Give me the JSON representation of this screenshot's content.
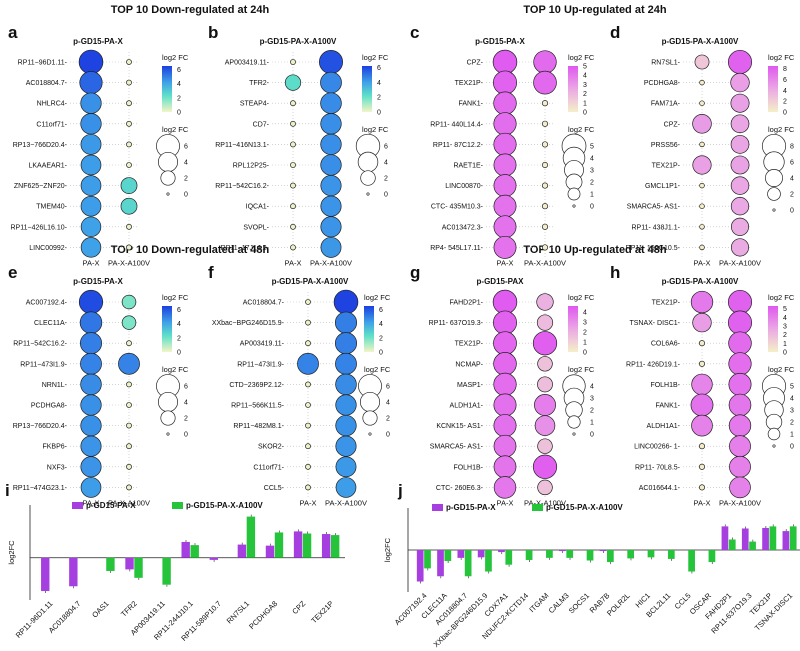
{
  "section_titles": {
    "down24": "TOP 10 Down-regulated at 24h",
    "up24": "TOP 10 Up-regulated at 24h",
    "down48": "TOP 10 Down-regulated at 48h",
    "up48": "TOP 10 Up-regulated at 48h"
  },
  "legend_labels": {
    "color": "log2 FC",
    "size": "log2 FC"
  },
  "bar_legend": {
    "series1": "p-GD15-PA-X",
    "series2": "p-GD15-PA-X-A100V",
    "ylabel": "log2FC"
  },
  "colors": {
    "purple": "#a63fe0",
    "green": "#26c43a",
    "blue_high": "#1d3fe0",
    "teal_low": "#2fe0c0",
    "pink_high": "#e058f0",
    "cream_low": "#f4f0c8"
  },
  "chart_data": [
    {
      "id": "a",
      "type": "dot",
      "title": "p-GD15-PA-X",
      "palette": "blue",
      "xlabels": [
        "PA-X",
        "PA-X-A100V"
      ],
      "genes": [
        "RP11−96D1.11",
        "AC018804.7",
        "NHLRC4",
        "C11orf71",
        "RP13−766D20.4",
        "LKAAEAR1",
        "ZNF625−ZNF20",
        "TMEM40",
        "RP11−426L16.10",
        "LINC00992"
      ],
      "values": [
        [
          6.4,
          0.1
        ],
        [
          5.6,
          0.1
        ],
        [
          4.6,
          0.1
        ],
        [
          4.6,
          0.1
        ],
        [
          4.4,
          0.1
        ],
        [
          4.3,
          0.1
        ],
        [
          4.3,
          2.6
        ],
        [
          4.3,
          2.6
        ],
        [
          4.2,
          0.1
        ],
        [
          4.2,
          0.1
        ]
      ],
      "color_ticks": [
        0,
        2,
        4,
        6
      ],
      "color_range": [
        0,
        6.5
      ],
      "size_ticks": [
        6,
        4,
        2,
        0
      ],
      "size_range": [
        0,
        6.5
      ]
    },
    {
      "id": "b",
      "type": "dot",
      "title": "p-GD15-PA-X-A100V",
      "palette": "blue",
      "xlabels": [
        "PA-X",
        "PA-X-A100V"
      ],
      "genes": [
        "AP003419.11",
        "TFR2",
        "STEAP4",
        "CD7",
        "RP11−416N13.1",
        "RPL12P25",
        "RP11−542C16.2",
        "IQCA1",
        "SVOPL",
        "RP11−17J14.2"
      ],
      "values": [
        [
          0.1,
          5.8
        ],
        [
          2.3,
          4.6
        ],
        [
          0.1,
          4.5
        ],
        [
          0.1,
          4.4
        ],
        [
          0.1,
          4.4
        ],
        [
          0.1,
          4.4
        ],
        [
          0.1,
          4.3
        ],
        [
          0.1,
          4.3
        ],
        [
          0.1,
          4.3
        ],
        [
          0.1,
          4.2
        ]
      ],
      "color_ticks": [
        0,
        2,
        4,
        6
      ],
      "color_range": [
        0,
        6.2
      ],
      "size_ticks": [
        6,
        4,
        2,
        0
      ],
      "size_range": [
        0,
        6.2
      ]
    },
    {
      "id": "c",
      "type": "dot",
      "title": "p-GD15-PA-X",
      "palette": "pink",
      "xlabels": [
        "PA-X",
        "PA-X-A100V"
      ],
      "genes": [
        "CPZ",
        "TEX21P",
        "FANK1",
        "RP11- 440L14.4",
        "RP11- 87C12.2",
        "RAET1E",
        "LINC00870",
        "CTC- 435M10.3",
        "AC013472.3",
        "RP4- 545L17.11"
      ],
      "values": [
        [
          4.9,
          4.4
        ],
        [
          4.7,
          4.5
        ],
        [
          4.4,
          0.1
        ],
        [
          4.3,
          0.1
        ],
        [
          4.3,
          0.1
        ],
        [
          4.2,
          0.1
        ],
        [
          4.2,
          0.1
        ],
        [
          4.2,
          0.1
        ],
        [
          4.2,
          0.1
        ],
        [
          4.2,
          0.1
        ]
      ],
      "color_ticks": [
        0,
        1,
        2,
        3,
        4,
        5
      ],
      "color_range": [
        0,
        5
      ],
      "size_ticks": [
        5,
        4,
        3,
        2,
        1,
        0
      ],
      "size_range": [
        0,
        5
      ]
    },
    {
      "id": "d",
      "type": "dot",
      "title": "p-GD15-PA-X-A100V",
      "palette": "pink",
      "xlabels": [
        "PA-X",
        "PA-X-A100V"
      ],
      "genes": [
        "RN7SL1",
        "PCDHGA8",
        "FAM71A",
        "CPZ",
        "PRSS56",
        "TEX21P",
        "GMCL1P1",
        "SMARCA5- AS1",
        "RP11- 438J1.1",
        "RP11- 162G10.5"
      ],
      "values": [
        [
          2.5,
          8.0
        ],
        [
          0.1,
          4.8
        ],
        [
          0.1,
          4.6
        ],
        [
          4.9,
          4.4
        ],
        [
          0.1,
          4.4
        ],
        [
          4.7,
          4.5
        ],
        [
          0.1,
          4.3
        ],
        [
          0.1,
          4.2
        ],
        [
          0.1,
          4.1
        ],
        [
          0.1,
          4.1
        ]
      ],
      "color_ticks": [
        0,
        2,
        4,
        6,
        8
      ],
      "color_range": [
        0,
        8.5
      ],
      "size_ticks": [
        8,
        6,
        4,
        2,
        0
      ],
      "size_range": [
        0,
        8.5
      ]
    },
    {
      "id": "e",
      "type": "dot",
      "title": "p-GD15-PA-X",
      "palette": "blue",
      "xlabels": [
        "PA-X",
        "PA-X-A100V"
      ],
      "genes": [
        "AC007192.4",
        "CLEC11A",
        "RP11−542C16.2",
        "RP11−473I1.9",
        "NRN1L",
        "PCDHGA8",
        "RP13−766D20.4",
        "FKBP6",
        "NXF3",
        "RP11−474G23.1"
      ],
      "values": [
        [
          6.2,
          1.8
        ],
        [
          5.2,
          1.8
        ],
        [
          5.0,
          0.1
        ],
        [
          4.9,
          4.9
        ],
        [
          4.7,
          0.1
        ],
        [
          4.6,
          0.1
        ],
        [
          4.6,
          0.1
        ],
        [
          4.5,
          0.1
        ],
        [
          4.5,
          0.1
        ],
        [
          4.3,
          0.1
        ]
      ],
      "color_ticks": [
        0,
        2,
        4,
        6
      ],
      "color_range": [
        0,
        6.5
      ],
      "size_ticks": [
        6,
        4,
        2,
        0
      ],
      "size_range": [
        0,
        6.5
      ]
    },
    {
      "id": "f",
      "type": "dot",
      "title": "p-GD15-PA-X-A100V",
      "palette": "blue",
      "xlabels": [
        "PA-X",
        "PA-X-A100V"
      ],
      "genes": [
        "AC018804.7",
        "XXbac−BPG246D15.9",
        "AP003419.11",
        "RP11−473I1.9",
        "CTD−2369P2.12",
        "RP11−566K11.5",
        "RP11−482M8.1",
        "SKOR2",
        "C11orf71",
        "CCL5"
      ],
      "values": [
        [
          0.1,
          6.4
        ],
        [
          0.1,
          5.0
        ],
        [
          0.1,
          5.0
        ],
        [
          4.9,
          4.9
        ],
        [
          0.1,
          4.7
        ],
        [
          0.1,
          4.6
        ],
        [
          0.1,
          4.6
        ],
        [
          0.1,
          4.5
        ],
        [
          0.1,
          4.4
        ],
        [
          0.1,
          4.3
        ]
      ],
      "color_ticks": [
        0,
        2,
        4,
        6
      ],
      "color_range": [
        0,
        6.5
      ],
      "size_ticks": [
        6,
        4,
        2,
        0
      ],
      "size_range": [
        0,
        6.5
      ]
    },
    {
      "id": "g",
      "type": "dot",
      "title": "p-GD15-PAX",
      "palette": "pink",
      "xlabels": [
        "PA-X",
        "PA-X-A100V"
      ],
      "genes": [
        "FAHD2P1",
        "RP11- 637O19.3",
        "TEX21P",
        "NCMAP",
        "MASP1",
        "ALDH1A1",
        "KCNK15- AS1",
        "SMARCA5- AS1",
        "FOLH1B",
        "CTC- 260E6.3"
      ],
      "values": [
        [
          4.5,
          2.0
        ],
        [
          4.3,
          1.7
        ],
        [
          4.2,
          4.4
        ],
        [
          4.1,
          1.5
        ],
        [
          4.0,
          1.6
        ],
        [
          3.9,
          3.5
        ],
        [
          3.9,
          3.0
        ],
        [
          3.8,
          1.5
        ],
        [
          3.8,
          4.4
        ],
        [
          3.7,
          1.5
        ]
      ],
      "color_ticks": [
        0,
        1,
        2,
        3,
        4
      ],
      "color_range": [
        0,
        4.6
      ],
      "size_ticks": [
        4,
        3,
        2,
        1,
        0
      ],
      "size_range": [
        0,
        4.6
      ]
    },
    {
      "id": "h",
      "type": "dot",
      "title": "p-GD15-PA-X-A100V",
      "palette": "pink",
      "xlabels": [
        "PA-X",
        "PA-X-A100V"
      ],
      "genes": [
        "TEX21P",
        "TSNAX- DISC1",
        "COL6A6",
        "RP11- 426D19.1",
        "FOLH1B",
        "FANK1",
        "ALDH1A1",
        "LINC00266- 1",
        "RP11- 70L8.5",
        "AC016644.1"
      ],
      "values": [
        [
          4.2,
          5.0
        ],
        [
          3.0,
          5.0
        ],
        [
          0.1,
          4.7
        ],
        [
          0.1,
          4.6
        ],
        [
          3.8,
          4.5
        ],
        [
          4.4,
          4.3
        ],
        [
          3.9,
          4.2
        ],
        [
          0.1,
          4.0
        ],
        [
          0.1,
          4.0
        ],
        [
          0.1,
          3.9
        ]
      ],
      "color_ticks": [
        0,
        1,
        2,
        3,
        4,
        5
      ],
      "color_range": [
        0,
        5.3
      ],
      "size_ticks": [
        5,
        4,
        3,
        2,
        1,
        0
      ],
      "size_range": [
        0,
        5.3
      ]
    },
    {
      "id": "i",
      "type": "bar",
      "ylabel": "log2FC",
      "ylim": [
        -8,
        10
      ],
      "series_names": [
        "p-GD15-PA-X",
        "p-GD15-PA-X-A100V"
      ],
      "categories": [
        "RP11-96D1.11",
        "AC018804.7",
        "OAS1",
        "TFR2",
        "AP003419.11",
        "RP11-244J10.1",
        "RP11-589P10.7",
        "RN7SL1",
        "PCDHGA8",
        "CPZ",
        "TEX21P"
      ],
      "series": [
        {
          "name": "p-GD15-PA-X",
          "values": [
            -6.3,
            -5.4,
            0,
            -2.2,
            0,
            3.0,
            -0.4,
            2.5,
            2.3,
            5.0,
            4.5
          ]
        },
        {
          "name": "p-GD15-PA-X-A100V",
          "values": [
            0,
            0,
            -2.5,
            -3.8,
            -5.1,
            2.4,
            0,
            7.8,
            4.8,
            4.6,
            4.3
          ]
        }
      ]
    },
    {
      "id": "j",
      "type": "bar",
      "ylabel": "log2FC",
      "ylim": [
        -8,
        8
      ],
      "series_names": [
        "p-GD15-PA-X",
        "p-GD15-PA-X-A100V"
      ],
      "categories": [
        "AC007192.4",
        "CLEC11A",
        "AC018804.7",
        "XXbac-BPG246D15.9",
        "COX7A1",
        "NDUFC2-KCTD14",
        "ITGAM",
        "CALM3",
        "SOCS1",
        "RAB7B",
        "POLR2L",
        "HIC1",
        "BCL2L11",
        "CCL5",
        "OSCAR",
        "FAHD2P1",
        "RP11-637O19.3",
        "TEX21P",
        "TSNAX-DISC1"
      ],
      "series": [
        {
          "name": "p-GD15-PA-X",
          "values": [
            -6.0,
            -5.0,
            -1.5,
            -1.4,
            -0.4,
            0,
            0,
            -0.2,
            0,
            -0.2,
            0,
            0,
            0,
            0,
            0,
            4.5,
            4.1,
            4.2,
            3.6
          ]
        },
        {
          "name": "p-GD15-PA-X-A100V",
          "values": [
            -3.5,
            -2.1,
            -5.0,
            -4.1,
            -2.8,
            -1.9,
            -1.5,
            -1.5,
            -2.0,
            -2.3,
            -1.6,
            -1.4,
            -1.7,
            -4.1,
            -2.3,
            2.0,
            1.6,
            4.5,
            4.5
          ]
        }
      ]
    }
  ]
}
